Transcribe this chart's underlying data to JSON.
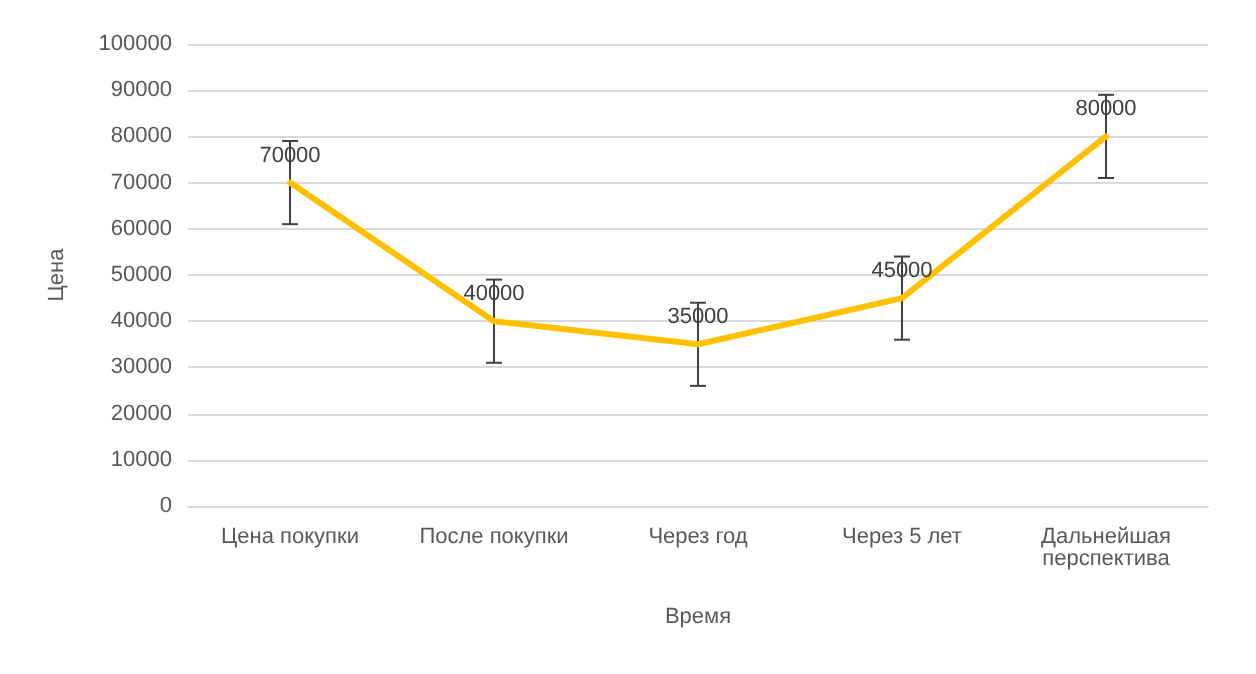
{
  "chart_data": {
    "type": "line",
    "xlabel": "Время",
    "ylabel": "Цена",
    "categories": [
      "Цена покупки",
      "После покупки",
      "Через год",
      "Через 5 лет",
      "Дальнейшая перспектива"
    ],
    "series": [
      {
        "color": "#ffc000",
        "values": [
          70000,
          40000,
          35000,
          45000,
          80000
        ],
        "errors": [
          9000,
          9000,
          9000,
          9000,
          9000
        ]
      }
    ],
    "ylim": [
      0,
      100000
    ],
    "yticks": [
      0,
      10000,
      20000,
      30000,
      40000,
      50000,
      60000,
      70000,
      80000,
      90000,
      100000
    ],
    "grid": "y",
    "marker": "none",
    "line_style": "solid",
    "data_labels": true
  }
}
